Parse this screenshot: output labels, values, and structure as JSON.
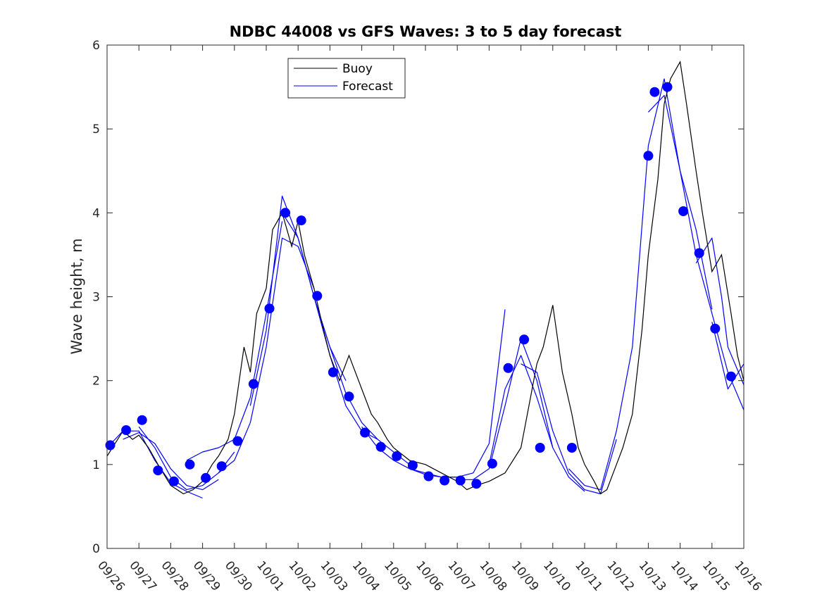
{
  "chart_data": {
    "type": "line",
    "title": "NDBC 44008 vs GFS Waves: 3 to 5 day forecast",
    "xlabel": "",
    "ylabel": "Wave height, m",
    "ylim": [
      0,
      6
    ],
    "xlim": [
      0,
      20
    ],
    "x_tick_labels": [
      "09/26",
      "09/27",
      "09/28",
      "09/29",
      "09/30",
      "10/01",
      "10/02",
      "10/03",
      "10/04",
      "10/05",
      "10/06",
      "10/07",
      "10/08",
      "10/09",
      "10/10",
      "10/11",
      "10/12",
      "10/13",
      "10/14",
      "10/15",
      "10/16"
    ],
    "y_tick_labels": [
      "0",
      "1",
      "2",
      "3",
      "4",
      "5",
      "6"
    ],
    "legend": {
      "placement": "top-center",
      "entries": [
        {
          "label": "Buoy",
          "color": "#000000"
        },
        {
          "label": "Forecast",
          "color": "#0000ff"
        }
      ]
    },
    "colors": {
      "buoy": "#000000",
      "forecast": "#0000ff",
      "marker": "#0000ff"
    },
    "buoy": {
      "name": "Buoy",
      "x": [
        0.0,
        0.5,
        0.8,
        1.0,
        1.3,
        1.6,
        2.0,
        2.4,
        2.7,
        3.0,
        3.3,
        3.5,
        3.8,
        4.0,
        4.3,
        4.5,
        4.7,
        5.0,
        5.2,
        5.5,
        5.8,
        6.0,
        6.2,
        6.5,
        6.8,
        7.0,
        7.3,
        7.6,
        8.0,
        8.3,
        8.5,
        8.8,
        9.0,
        9.5,
        10.0,
        10.5,
        11.0,
        11.3,
        11.6,
        12.0,
        12.5,
        13.0,
        13.3,
        13.5,
        13.7,
        14.0,
        14.3,
        14.6,
        14.8,
        15.0,
        15.3,
        15.5,
        15.7,
        16.0,
        16.2,
        16.5,
        16.8,
        17.0,
        17.3,
        17.5,
        17.7,
        18.0,
        18.2,
        18.5,
        18.7,
        19.0,
        19.3,
        19.6,
        19.8,
        20.0
      ],
      "y": [
        1.1,
        1.4,
        1.3,
        1.35,
        1.2,
        1.0,
        0.75,
        0.65,
        0.7,
        0.8,
        1.0,
        1.1,
        1.3,
        1.6,
        2.4,
        2.1,
        2.8,
        3.1,
        3.8,
        4.0,
        3.6,
        3.9,
        3.5,
        3.1,
        2.6,
        2.3,
        2.0,
        2.3,
        1.9,
        1.6,
        1.5,
        1.3,
        1.2,
        1.05,
        1.0,
        0.9,
        0.8,
        0.7,
        0.75,
        0.8,
        0.9,
        1.2,
        1.8,
        2.2,
        2.4,
        2.9,
        2.1,
        1.6,
        1.2,
        1.0,
        0.8,
        0.65,
        0.7,
        1.0,
        1.2,
        1.6,
        2.6,
        3.5,
        4.4,
        5.3,
        5.6,
        5.8,
        5.3,
        4.5,
        4.0,
        3.3,
        3.5,
        2.8,
        2.3,
        2.0
      ]
    },
    "forecast_runs": [
      {
        "x": [
          0.0,
          0.5,
          1.0,
          1.5,
          2.0,
          2.5,
          3.0
        ],
        "y": [
          1.2,
          1.4,
          1.4,
          1.05,
          0.78,
          0.68,
          0.6
        ]
      },
      {
        "x": [
          0.5,
          1.0,
          1.5,
          2.0,
          2.5,
          3.0,
          3.5
        ],
        "y": [
          1.3,
          1.38,
          1.25,
          0.95,
          0.75,
          0.7,
          0.82
        ]
      },
      {
        "x": [
          1.0,
          1.5,
          2.0,
          2.5,
          3.0,
          3.5,
          4.0
        ],
        "y": [
          1.45,
          1.2,
          0.85,
          0.7,
          0.75,
          0.9,
          1.15
        ]
      },
      {
        "x": [
          2.5,
          3.0,
          3.5,
          4.0,
          4.5,
          5.0,
          5.5
        ],
        "y": [
          1.05,
          1.15,
          1.2,
          1.3,
          1.8,
          2.8,
          3.9
        ]
      },
      {
        "x": [
          3.5,
          4.0,
          4.5,
          5.0,
          5.5,
          6.0,
          6.5
        ],
        "y": [
          0.9,
          1.05,
          1.5,
          2.4,
          3.7,
          3.6,
          3.1
        ]
      },
      {
        "x": [
          4.5,
          5.0,
          5.5,
          6.0,
          6.5,
          7.0,
          7.5
        ],
        "y": [
          1.7,
          2.6,
          4.2,
          3.7,
          3.0,
          2.4,
          2.0
        ]
      },
      {
        "x": [
          5.5,
          6.0,
          6.5,
          7.0,
          7.5,
          8.0,
          8.5
        ],
        "y": [
          4.0,
          3.7,
          3.0,
          2.3,
          1.7,
          1.4,
          1.3
        ]
      },
      {
        "x": [
          6.5,
          7.0,
          7.5,
          8.0,
          8.5,
          9.0,
          9.5
        ],
        "y": [
          3.0,
          2.4,
          1.85,
          1.5,
          1.3,
          1.15,
          1.0
        ]
      },
      {
        "x": [
          8.0,
          8.5,
          9.0,
          9.5,
          10.0,
          10.5,
          11.0
        ],
        "y": [
          1.45,
          1.2,
          1.05,
          0.95,
          0.9,
          0.85,
          0.85
        ]
      },
      {
        "x": [
          9.5,
          10.0,
          10.5,
          11.0,
          11.5,
          12.0,
          12.5
        ],
        "y": [
          0.95,
          0.88,
          0.85,
          0.85,
          0.9,
          1.25,
          2.85
        ]
      },
      {
        "x": [
          11.0,
          11.5,
          12.0,
          12.5,
          13.0,
          13.5,
          14.0
        ],
        "y": [
          0.82,
          0.82,
          0.95,
          1.7,
          2.5,
          2.0,
          1.2
        ]
      },
      {
        "x": [
          12.0,
          12.5,
          13.0,
          13.5,
          14.0,
          14.5,
          15.0
        ],
        "y": [
          1.0,
          1.9,
          2.3,
          1.8,
          1.2,
          0.85,
          0.68
        ]
      },
      {
        "x": [
          13.0,
          13.5,
          14.0,
          14.5,
          15.0,
          15.5,
          16.0
        ],
        "y": [
          2.2,
          2.1,
          1.4,
          0.9,
          0.7,
          0.65,
          1.3
        ]
      },
      {
        "x": [
          14.5,
          15.0,
          15.5,
          16.0,
          16.5,
          17.0,
          17.5
        ],
        "y": [
          0.95,
          0.75,
          0.7,
          1.4,
          2.4,
          4.8,
          5.6
        ]
      },
      {
        "x": [
          17.0,
          17.5,
          18.0,
          18.5,
          19.0
        ],
        "y": [
          5.2,
          5.4,
          4.5,
          3.8,
          2.85
        ]
      },
      {
        "x": [
          17.5,
          18.0,
          18.5,
          19.0,
          19.5,
          20.0
        ],
        "y": [
          5.6,
          4.5,
          3.5,
          2.8,
          2.1,
          1.65
        ]
      },
      {
        "x": [
          18.5,
          19.0,
          19.3,
          19.5,
          20.0
        ],
        "y": [
          3.4,
          3.7,
          3.0,
          2.4,
          1.95
        ]
      },
      {
        "x": [
          19.0,
          19.5,
          20.0
        ],
        "y": [
          2.7,
          1.9,
          2.2
        ]
      }
    ],
    "forecast_points": {
      "name": "Forecast",
      "x": [
        0.1,
        0.6,
        1.1,
        1.6,
        2.1,
        2.6,
        3.1,
        3.6,
        4.1,
        4.6,
        5.1,
        5.6,
        6.1,
        6.6,
        7.1,
        7.6,
        8.1,
        8.6,
        9.1,
        9.6,
        10.1,
        10.6,
        11.1,
        11.6,
        12.1,
        12.6,
        13.1,
        13.6,
        14.6,
        17.0,
        17.2,
        17.6,
        18.1,
        18.6,
        19.1,
        19.6
      ],
      "y": [
        1.23,
        1.41,
        1.53,
        0.93,
        0.8,
        1.0,
        0.84,
        0.98,
        1.28,
        1.96,
        2.86,
        4.0,
        3.91,
        3.01,
        2.1,
        1.81,
        1.38,
        1.21,
        1.1,
        0.99,
        0.86,
        0.81,
        0.81,
        0.77,
        1.01,
        2.15,
        2.49,
        1.2,
        1.2,
        4.68,
        5.44,
        5.5,
        4.02,
        3.52,
        2.62,
        2.05
      ]
    }
  }
}
